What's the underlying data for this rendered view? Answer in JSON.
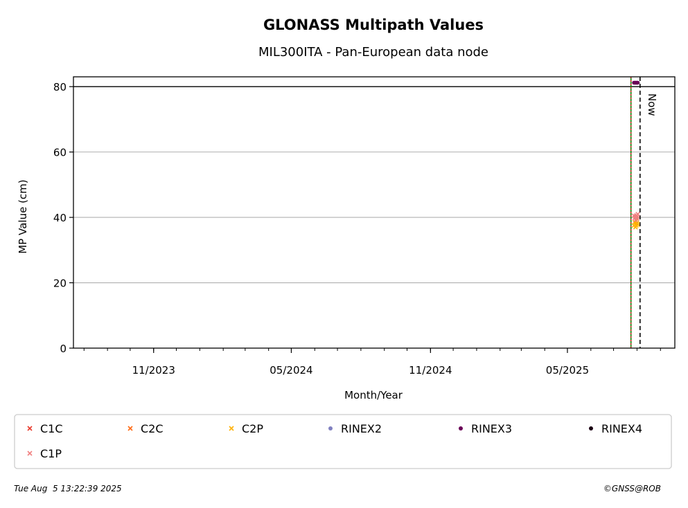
{
  "chart_data": {
    "type": "scatter",
    "title": "GLONASS Multipath Values",
    "subtitle": "MIL300ITA - Pan-European data node",
    "xlabel": "Month/Year",
    "ylabel": "MP Value (cm)",
    "ylim": [
      0,
      83
    ],
    "xlim": [
      "2023-07-18",
      "2025-09-20"
    ],
    "grid": "y",
    "x_ticks": [
      "2023-11-01",
      "2024-05-01",
      "2024-11-01",
      "2025-05-01"
    ],
    "x_tick_labels": [
      "11/2023",
      "05/2024",
      "11/2024",
      "05/2025"
    ],
    "y_ticks": [
      0,
      20,
      40,
      60,
      80
    ],
    "threshold_line": 80,
    "vertical_lines": [
      {
        "date": "2025-07-24",
        "color": "#008000",
        "style": "solid"
      },
      {
        "date": "2025-07-24",
        "color": "#d62728",
        "style": "dotted"
      },
      {
        "date": "2025-08-05",
        "color": "#000000",
        "style": "dashed",
        "label": "Now"
      }
    ],
    "series": [
      {
        "name": "C1C",
        "marker": "x",
        "color": "#e8392b",
        "points": []
      },
      {
        "name": "C2C",
        "marker": "x",
        "color": "#ff6a13",
        "points": []
      },
      {
        "name": "C2P",
        "marker": "x",
        "color": "#ffb000",
        "points": [
          [
            "2025-07-28",
            37.5
          ],
          [
            "2025-07-29",
            38.5
          ],
          [
            "2025-07-30",
            37.0
          ],
          [
            "2025-07-30",
            38.0
          ],
          [
            "2025-07-31",
            39.0
          ],
          [
            "2025-07-31",
            37.5
          ],
          [
            "2025-08-01",
            38.2
          ],
          [
            "2025-08-01",
            39.5
          ],
          [
            "2025-08-02",
            37.8
          ]
        ]
      },
      {
        "name": "RINEX2",
        "marker": "o",
        "color": "#8080c0",
        "points": []
      },
      {
        "name": "RINEX3",
        "marker": "o",
        "color": "#6a0057",
        "points": [
          [
            "2025-07-28",
            81.2
          ],
          [
            "2025-07-29",
            81.2
          ],
          [
            "2025-07-30",
            81.2
          ],
          [
            "2025-07-31",
            81.2
          ],
          [
            "2025-08-01",
            81.2
          ],
          [
            "2025-08-02",
            81.2
          ]
        ]
      },
      {
        "name": "RINEX4",
        "marker": "o",
        "color": "#1a0013",
        "points": []
      },
      {
        "name": "C1P",
        "marker": "x",
        "color": "#f08080",
        "points": [
          [
            "2025-07-28",
            40.5
          ],
          [
            "2025-07-29",
            39.8
          ],
          [
            "2025-07-30",
            40.2
          ],
          [
            "2025-07-30",
            39.2
          ],
          [
            "2025-07-31",
            40.6
          ],
          [
            "2025-08-01",
            39.6
          ],
          [
            "2025-08-01",
            40.1
          ],
          [
            "2025-08-02",
            41.0
          ]
        ]
      }
    ]
  },
  "footer": {
    "timestamp": "Tue Aug  5 13:22:39 2025",
    "credit": "©GNSS@ROB"
  }
}
